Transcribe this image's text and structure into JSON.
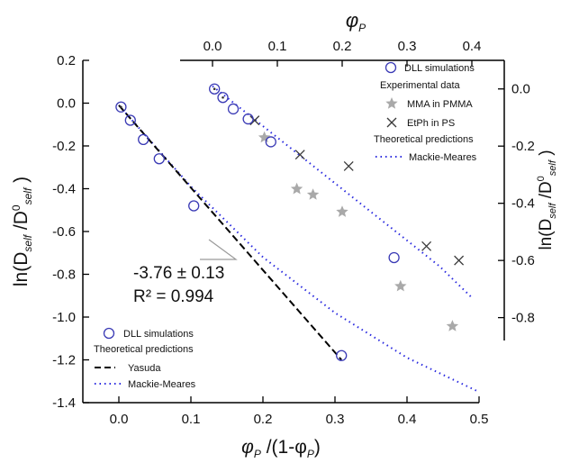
{
  "chart_data": {
    "type": "scatter",
    "axes": {
      "bottom": {
        "label_main": "φ",
        "label_sub": "P",
        "label_tail": " /(1-φ",
        "label_tail_sub": "P",
        "label_close": ")",
        "range": [
          -0.05,
          0.5
        ],
        "ticks": [
          "0.0",
          "0.1",
          "0.2",
          "0.3",
          "0.4",
          "0.5"
        ]
      },
      "left": {
        "label_pre": "ln(D",
        "label_sub1": "self",
        "label_mid": " /D",
        "label_sup": "0",
        "label_sub2": "self",
        "label_close": " )",
        "range": [
          -1.4,
          0.2
        ],
        "ticks": [
          "0.2",
          "0.0",
          "-0.2",
          "-0.4",
          "-0.6",
          "-0.8",
          "-1.0",
          "-1.2",
          "-1.4"
        ]
      },
      "top": {
        "label_main": "φ",
        "label_sub": "P",
        "range": [
          -0.05,
          0.45
        ],
        "ticks": [
          "0.0",
          "0.1",
          "0.2",
          "0.3",
          "0.4"
        ]
      },
      "right": {
        "label_pre": "ln(D",
        "label_sub1": "self",
        "label_mid": " /D",
        "label_sup": "0",
        "label_sub2": "self",
        "label_close": " )",
        "range": [
          -0.88,
          0.1
        ],
        "ticks": [
          "0.0",
          "-0.2",
          "-0.4",
          "-0.6",
          "-0.8"
        ]
      }
    },
    "annotation": {
      "slope": "-3.76 ± 0.13",
      "r2": "R² = 0.994"
    },
    "panel_a": {
      "legend": {
        "dll": "DLL simulations",
        "heading": "Theoretical predictions",
        "yasuda": "Yasuda",
        "mackie": "Mackie-Meares"
      },
      "dll_points": [
        [
          0.003,
          -0.018
        ],
        [
          0.016,
          -0.08
        ],
        [
          0.034,
          -0.17
        ],
        [
          0.056,
          -0.26
        ],
        [
          0.104,
          -0.48
        ],
        [
          0.309,
          -1.18
        ]
      ],
      "yasuda_line": [
        [
          0.0,
          -0.01
        ],
        [
          0.309,
          -1.2
        ]
      ],
      "mackie_line": [
        [
          0.0,
          -0.01
        ],
        [
          0.1,
          -0.39
        ],
        [
          0.2,
          -0.72
        ],
        [
          0.3,
          -0.98
        ],
        [
          0.4,
          -1.19
        ],
        [
          0.5,
          -1.35
        ]
      ]
    },
    "panel_b": {
      "legend": {
        "dll": "DLL simulations",
        "heading": "Experimental data",
        "mma": "MMA in PMMA",
        "etph": "EtPh in PS",
        "heading2": "Theoretical predictions",
        "mackie": "Mackie-Meares"
      },
      "dll_points": [
        [
          0.003,
          0.0
        ],
        [
          0.016,
          -0.03
        ],
        [
          0.032,
          -0.07
        ],
        [
          0.055,
          -0.105
        ],
        [
          0.09,
          -0.185
        ],
        [
          0.28,
          -0.59
        ]
      ],
      "mma_points": [
        [
          0.08,
          -0.17
        ],
        [
          0.13,
          -0.35
        ],
        [
          0.155,
          -0.37
        ],
        [
          0.2,
          -0.43
        ],
        [
          0.29,
          -0.69
        ],
        [
          0.37,
          -0.83
        ]
      ],
      "etph_points": [
        [
          0.065,
          -0.11
        ],
        [
          0.135,
          -0.23
        ],
        [
          0.21,
          -0.27
        ],
        [
          0.33,
          -0.55
        ],
        [
          0.38,
          -0.6
        ]
      ],
      "mackie_line": [
        [
          0.0,
          0.01
        ],
        [
          0.05,
          -0.08
        ],
        [
          0.1,
          -0.17
        ],
        [
          0.15,
          -0.26
        ],
        [
          0.2,
          -0.35
        ],
        [
          0.25,
          -0.44
        ],
        [
          0.3,
          -0.53
        ],
        [
          0.35,
          -0.62
        ],
        [
          0.4,
          -0.73
        ]
      ]
    },
    "colors": {
      "axis": "#000000",
      "dll": "#3a3ab5",
      "mackie": "#2a2adf",
      "yasuda": "#000000",
      "star": "#a9a9a9",
      "cross": "#3a3a3a",
      "fit": "#9a9a9a"
    }
  }
}
